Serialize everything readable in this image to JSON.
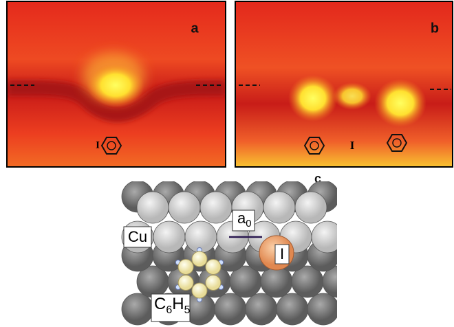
{
  "panels": {
    "a": "a",
    "b": "b",
    "c": "c"
  },
  "panel_a": {
    "iodine": "I"
  },
  "panel_b": {
    "iodine": "I"
  },
  "model": {
    "substrate": "Cu",
    "lattice": {
      "main": "a",
      "sub": "0"
    },
    "iodine": "I",
    "phenyl": [
      "C",
      "6",
      "H",
      "5"
    ]
  }
}
